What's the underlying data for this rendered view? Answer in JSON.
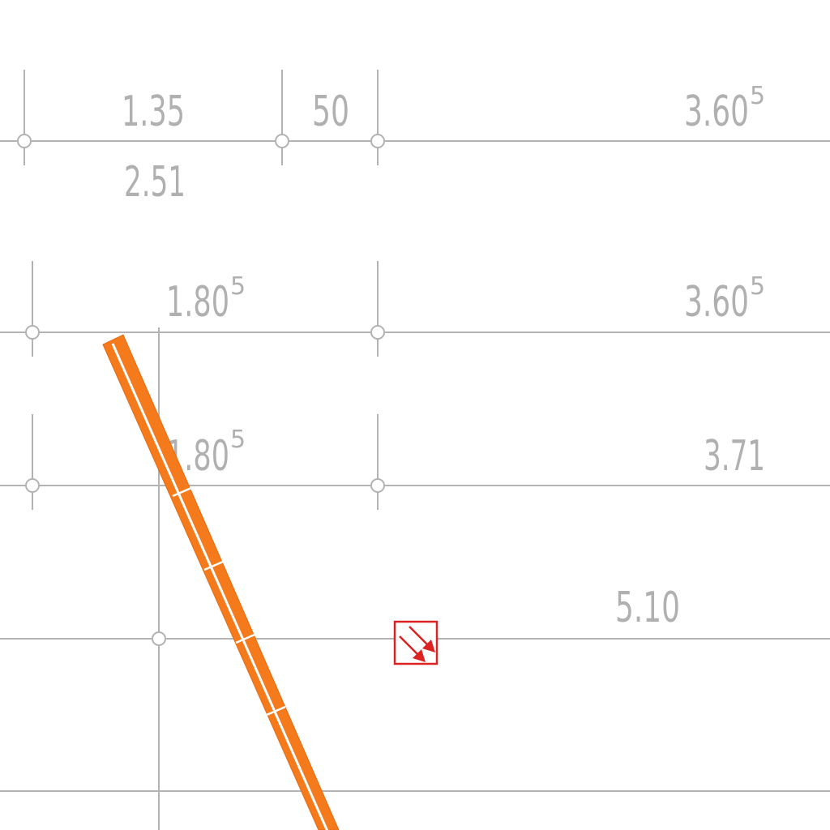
{
  "dimensions": [
    {
      "id": "d1",
      "value": "1.35",
      "exp": ""
    },
    {
      "id": "d2",
      "value": "50",
      "exp": ""
    },
    {
      "id": "d3",
      "value": "3.60",
      "exp": "5"
    },
    {
      "id": "d4",
      "value": "2.51",
      "exp": ""
    },
    {
      "id": "d5",
      "value": "1.80",
      "exp": "5"
    },
    {
      "id": "d6",
      "value": "3.60",
      "exp": "5"
    },
    {
      "id": "d7",
      "value": "1.80",
      "exp": "5"
    },
    {
      "id": "d8",
      "value": "3.71",
      "exp": ""
    },
    {
      "id": "d9",
      "value": "5.10",
      "exp": ""
    }
  ],
  "colors": {
    "dimension": "#b0b0b0",
    "conduit": "#f47a1c",
    "symbol": "#dd2222",
    "background": "#ffffff"
  },
  "symbol": {
    "icon": "double-arrow-box-icon"
  }
}
